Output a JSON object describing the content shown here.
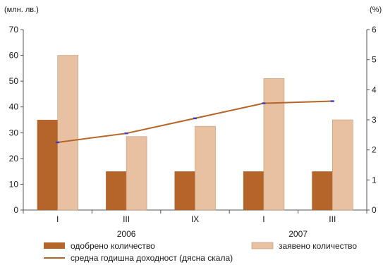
{
  "chart_data": {
    "type": "bar",
    "title": "",
    "left_unit": "(млн. лв.)",
    "right_unit": "(%)",
    "categories": [
      "I",
      "III",
      "IX",
      "I",
      "III"
    ],
    "groups": [
      {
        "label": "2006",
        "span": [
          0,
          2
        ]
      },
      {
        "label": "2007",
        "span": [
          3,
          4
        ]
      }
    ],
    "ylim_left": [
      0,
      70
    ],
    "yticks_left": [
      0,
      10,
      20,
      30,
      40,
      50,
      60,
      70
    ],
    "ylim_right": [
      0,
      6
    ],
    "yticks_right": [
      0,
      1,
      2,
      3,
      4,
      5,
      6
    ],
    "series": [
      {
        "name": "одобрено количество",
        "kind": "bar",
        "axis": "left",
        "color": "#b5652a",
        "values": [
          35,
          15,
          15,
          15,
          15
        ]
      },
      {
        "name": "заявено количество",
        "kind": "bar",
        "axis": "left",
        "color": "#e8c0a2",
        "values": [
          60,
          28.5,
          32.5,
          51,
          35
        ]
      },
      {
        "name": "средна годишна доходност (дясна скала)",
        "kind": "line",
        "axis": "right",
        "color": "#b5652a",
        "marker_color": "#3b3bbf",
        "values": [
          2.25,
          2.55,
          3.05,
          3.55,
          3.62
        ]
      }
    ],
    "legend_position": "bottom",
    "grid": false
  }
}
